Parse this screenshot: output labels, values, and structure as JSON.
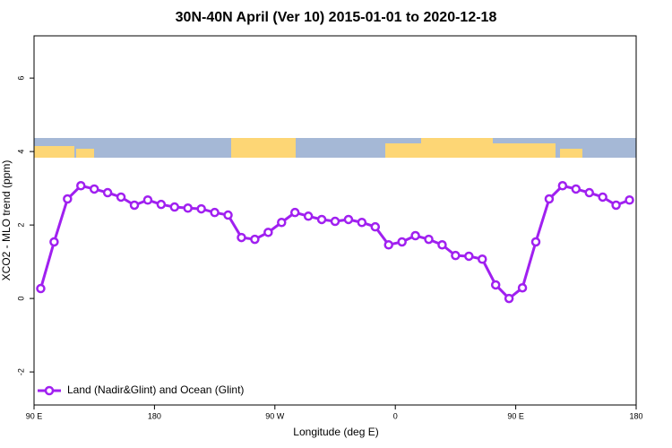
{
  "chart_data": {
    "type": "line",
    "title": "30N-40N April (Ver 10)   2015-01-01 to 2020-12-18",
    "x_label": "Longitude (deg E)",
    "y_label": "XCO2 - MLO trend (ppm)",
    "xlim": [
      90,
      540
    ],
    "ylim": [
      -2.9,
      7.15
    ],
    "xticks": [
      {
        "value": 90,
        "label": "90 E"
      },
      {
        "value": 180,
        "label": "180"
      },
      {
        "value": 270,
        "label": "90 W"
      },
      {
        "value": 360,
        "label": "0"
      },
      {
        "value": 450,
        "label": "90 E"
      },
      {
        "value": 540,
        "label": "180"
      }
    ],
    "yticks": [
      -2,
      0,
      2,
      4,
      6
    ],
    "legend": "bottom-left",
    "x": [
      95,
      105,
      115,
      125,
      135,
      145,
      155,
      165,
      175,
      185,
      195,
      205,
      215,
      225,
      235,
      245,
      255,
      265,
      275,
      285,
      295,
      305,
      315,
      325,
      335,
      345,
      355,
      365,
      375,
      385,
      395,
      405,
      415,
      425,
      435,
      445,
      455,
      465,
      475,
      485,
      495,
      505,
      515,
      525,
      535
    ],
    "series": [
      {
        "name": "Land (Nadir&Glint) and Ocean (Glint)",
        "color": "#a020f0",
        "values": [
          0.27,
          1.54,
          2.71,
          3.07,
          2.98,
          2.88,
          2.76,
          2.54,
          2.68,
          2.56,
          2.49,
          2.46,
          2.44,
          2.34,
          2.27,
          1.66,
          1.61,
          1.8,
          2.07,
          2.34,
          2.24,
          2.15,
          2.1,
          2.15,
          2.07,
          1.95,
          1.46,
          1.54,
          1.71,
          1.61,
          1.46,
          1.17,
          1.15,
          1.07,
          0.37,
          0.0,
          0.29,
          1.54,
          2.71,
          3.07,
          2.98,
          2.88,
          2.76,
          2.54,
          2.68
        ]
      }
    ]
  }
}
